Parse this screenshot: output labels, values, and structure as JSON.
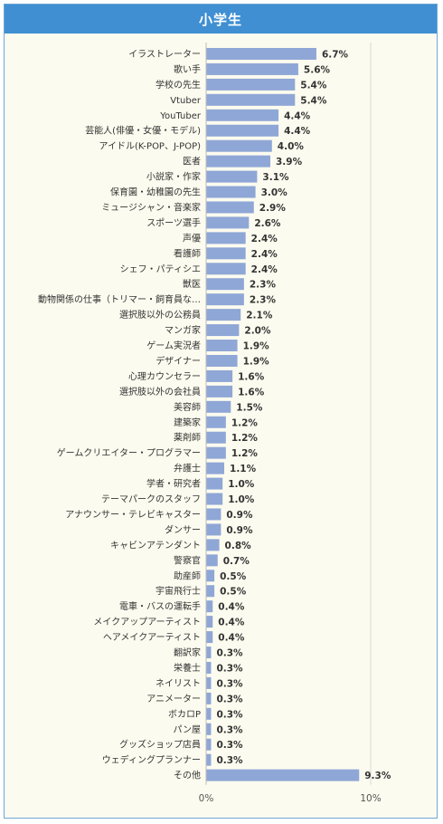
{
  "header": {
    "title": "小学生"
  },
  "colors": {
    "header_bg": "#3f8fd2",
    "panel_bg": "#fcfbef",
    "bar": "#8fa7d6",
    "grid": "#d8d8d8"
  },
  "chart_data": {
    "type": "bar",
    "orientation": "horizontal",
    "title": "小学生",
    "categories": [
      "イラストレーター",
      "歌い手",
      "学校の先生",
      "Vtuber",
      "YouTuber",
      "芸能人(俳優・女優・モデル)",
      "アイドル(K-POP、J-POP)",
      "医者",
      "小説家・作家",
      "保育園・幼稚園の先生",
      "ミュージシャン・音楽家",
      "スポーツ選手",
      "声優",
      "看護師",
      "シェフ・パティシエ",
      "獣医",
      "動物関係の仕事（トリマー・飼育員な…",
      "選択肢以外の公務員",
      "マンガ家",
      "ゲーム実況者",
      "デザイナー",
      "心理カウンセラー",
      "選択肢以外の会社員",
      "美容師",
      "建築家",
      "薬剤師",
      "ゲームクリエイター・プログラマー",
      "弁護士",
      "学者・研究者",
      "テーマパークのスタッフ",
      "アナウンサー・テレビキャスター",
      "ダンサー",
      "キャビンアテンダント",
      "警察官",
      "助産師",
      "宇宙飛行士",
      "電車・バスの運転手",
      "メイクアップアーティスト",
      "ヘアメイクアーティスト",
      "翻訳家",
      "栄養士",
      "ネイリスト",
      "アニメーター",
      "ボカロP",
      "パン屋",
      "グッズショップ店員",
      "ウェディングプランナー",
      "その他"
    ],
    "values": [
      6.7,
      5.6,
      5.4,
      5.4,
      4.4,
      4.4,
      4.0,
      3.9,
      3.1,
      3.0,
      2.9,
      2.6,
      2.4,
      2.4,
      2.4,
      2.3,
      2.3,
      2.1,
      2.0,
      1.9,
      1.9,
      1.6,
      1.6,
      1.5,
      1.2,
      1.2,
      1.2,
      1.1,
      1.0,
      1.0,
      0.9,
      0.9,
      0.8,
      0.7,
      0.5,
      0.5,
      0.4,
      0.4,
      0.4,
      0.3,
      0.3,
      0.3,
      0.3,
      0.3,
      0.3,
      0.3,
      0.3,
      9.3
    ],
    "value_labels": [
      "6.7%",
      "5.6%",
      "5.4%",
      "5.4%",
      "4.4%",
      "4.4%",
      "4.0%",
      "3.9%",
      "3.1%",
      "3.0%",
      "2.9%",
      "2.6%",
      "2.4%",
      "2.4%",
      "2.4%",
      "2.3%",
      "2.3%",
      "2.1%",
      "2.0%",
      "1.9%",
      "1.9%",
      "1.6%",
      "1.6%",
      "1.5%",
      "1.2%",
      "1.2%",
      "1.2%",
      "1.1%",
      "1.0%",
      "1.0%",
      "0.9%",
      "0.9%",
      "0.8%",
      "0.7%",
      "0.5%",
      "0.5%",
      "0.4%",
      "0.4%",
      "0.4%",
      "0.3%",
      "0.3%",
      "0.3%",
      "0.3%",
      "0.3%",
      "0.3%",
      "0.3%",
      "0.3%",
      "9.3%"
    ],
    "x_ticks": [
      "0%",
      "10%"
    ],
    "xlim": [
      0,
      10
    ],
    "grid": true
  }
}
